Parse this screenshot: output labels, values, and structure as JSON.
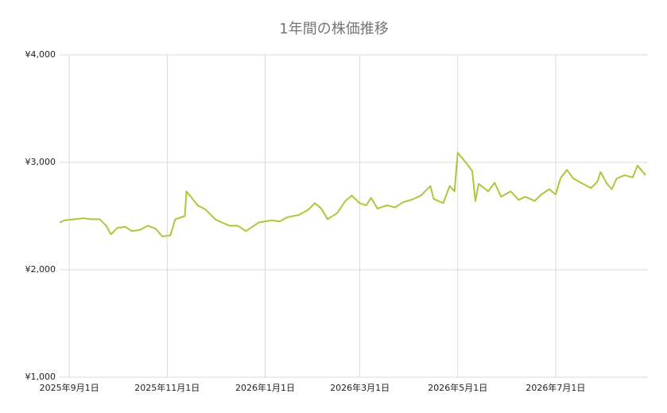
{
  "chart_data": {
    "type": "line",
    "title": "1年間の株価推移",
    "x": [
      "2025-08-26",
      "2025-08-29",
      "2025-09-04",
      "2025-09-10",
      "2025-09-15",
      "2025-09-20",
      "2025-09-24",
      "2025-09-27",
      "2025-10-01",
      "2025-10-06",
      "2025-10-10",
      "2025-10-15",
      "2025-10-20",
      "2025-10-25",
      "2025-10-29",
      "2025-11-03",
      "2025-11-06",
      "2025-11-12",
      "2025-11-13",
      "2025-11-20",
      "2025-11-25",
      "2025-12-01",
      "2025-12-05",
      "2025-12-10",
      "2025-12-15",
      "2025-12-20",
      "2025-12-28",
      "2026-01-05",
      "2026-01-10",
      "2026-01-15",
      "2026-01-22",
      "2026-01-28",
      "2026-02-01",
      "2026-02-05",
      "2026-02-09",
      "2026-02-15",
      "2026-02-20",
      "2026-02-24",
      "2026-03-01",
      "2026-03-05",
      "2026-03-08",
      "2026-03-12",
      "2026-03-18",
      "2026-03-23",
      "2026-03-28",
      "2026-04-02",
      "2026-04-08",
      "2026-04-14",
      "2026-04-16",
      "2026-04-22",
      "2026-04-26",
      "2026-04-29",
      "2026-05-01",
      "2026-05-06",
      "2026-05-10",
      "2026-05-12",
      "2026-05-14",
      "2026-05-20",
      "2026-05-24",
      "2026-05-28",
      "2026-06-03",
      "2026-06-08",
      "2026-06-12",
      "2026-06-18",
      "2026-06-22",
      "2026-06-27",
      "2026-07-01",
      "2026-07-04",
      "2026-07-08",
      "2026-07-12",
      "2026-07-18",
      "2026-07-23",
      "2026-07-27",
      "2026-07-29",
      "2026-08-02",
      "2026-08-05",
      "2026-08-08",
      "2026-08-13",
      "2026-08-18",
      "2026-08-21",
      "2026-08-26"
    ],
    "series": [
      {
        "name": "株価",
        "color": "#a8c93a",
        "values": [
          2440,
          2460,
          2470,
          2480,
          2470,
          2470,
          2410,
          2330,
          2390,
          2400,
          2360,
          2370,
          2410,
          2380,
          2310,
          2320,
          2470,
          2500,
          2730,
          2600,
          2560,
          2470,
          2440,
          2410,
          2410,
          2360,
          2440,
          2460,
          2450,
          2490,
          2510,
          2560,
          2620,
          2570,
          2470,
          2530,
          2640,
          2690,
          2620,
          2600,
          2670,
          2570,
          2600,
          2580,
          2630,
          2650,
          2690,
          2780,
          2660,
          2620,
          2780,
          2730,
          3090,
          3000,
          2920,
          2640,
          2800,
          2730,
          2810,
          2680,
          2730,
          2650,
          2680,
          2640,
          2700,
          2750,
          2700,
          2850,
          2930,
          2850,
          2800,
          2760,
          2820,
          2910,
          2800,
          2750,
          2850,
          2880,
          2860,
          2970,
          2880
        ]
      }
    ],
    "xlim": [
      "2025-08-26",
      "2026-08-26"
    ],
    "xticks": [
      {
        "value": "2025-09-01",
        "label": "2025年9月1日"
      },
      {
        "value": "2025-11-01",
        "label": "2025年11月1日"
      },
      {
        "value": "2026-01-01",
        "label": "2026年1月1日"
      },
      {
        "value": "2026-03-01",
        "label": "2026年3月1日"
      },
      {
        "value": "2026-05-01",
        "label": "2026年5月1日"
      },
      {
        "value": "2026-07-01",
        "label": "2026年7月1日"
      }
    ],
    "ylim": [
      1000,
      4000
    ],
    "yticks": [
      {
        "value": 1000,
        "label": "¥1,000"
      },
      {
        "value": 2000,
        "label": "¥2,000"
      },
      {
        "value": 3000,
        "label": "¥3,000"
      },
      {
        "value": 4000,
        "label": "¥4,000"
      }
    ],
    "grid": true
  }
}
